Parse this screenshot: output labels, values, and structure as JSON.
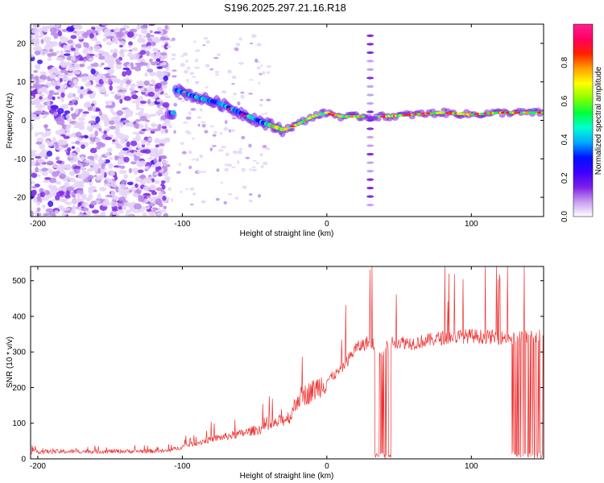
{
  "title": "S196.2025.297.21.16.R18",
  "chart_data": [
    {
      "type": "heatmap",
      "xlabel": "Height of straight line (km)",
      "ylabel": "Frequency (Hz)",
      "xlim": [
        -205,
        150
      ],
      "ylim": [
        -25,
        25
      ],
      "x_ticks": [
        -200,
        -100,
        0,
        100
      ],
      "y_ticks": [
        -20,
        -10,
        0,
        10,
        20
      ],
      "colorbar": {
        "label": "Normalized spectral amplitude",
        "range": [
          0,
          1
        ],
        "ticks": [
          "0.0",
          "0.2",
          "0.4",
          "0.6",
          "0.8"
        ],
        "colors": [
          "#ffffff",
          "#c89cf0",
          "#7d1fe8",
          "#3b00ff",
          "#0011ff",
          "#00aaff",
          "#00ffd0",
          "#00ff3c",
          "#8cff00",
          "#ffff00",
          "#ffa000",
          "#ff2000",
          "#ff0060",
          "#ff2090"
        ]
      },
      "ridge_frequency": [
        {
          "x": -105,
          "y": 8
        },
        {
          "x": -90,
          "y": 6
        },
        {
          "x": -75,
          "y": 4.5
        },
        {
          "x": -60,
          "y": 2
        },
        {
          "x": -45,
          "y": -0.5
        },
        {
          "x": -30,
          "y": -2.5
        },
        {
          "x": -20,
          "y": -1
        },
        {
          "x": -10,
          "y": 1
        },
        {
          "x": 0,
          "y": 2
        },
        {
          "x": 10,
          "y": 1
        },
        {
          "x": 25,
          "y": 1
        },
        {
          "x": 40,
          "y": 1
        },
        {
          "x": 60,
          "y": 1.5
        },
        {
          "x": 80,
          "y": 2
        },
        {
          "x": 100,
          "y": 1.5
        },
        {
          "x": 120,
          "y": 2
        },
        {
          "x": 150,
          "y": 2
        }
      ],
      "dashed_column_x": 30
    },
    {
      "type": "line",
      "xlabel": "Height of straight line (km)",
      "ylabel": "SNR (10 * v/v)",
      "xlim": [
        -205,
        150
      ],
      "ylim": [
        0,
        540
      ],
      "x_ticks": [
        -200,
        -100,
        0,
        100
      ],
      "y_ticks": [
        0,
        100,
        200,
        300,
        400,
        500
      ],
      "color": "#ee3333",
      "baseline": [
        {
          "x": -205,
          "y": 20
        },
        {
          "x": -110,
          "y": 22
        },
        {
          "x": -95,
          "y": 40
        },
        {
          "x": -80,
          "y": 55
        },
        {
          "x": -60,
          "y": 70
        },
        {
          "x": -40,
          "y": 90
        },
        {
          "x": -25,
          "y": 120
        },
        {
          "x": -20,
          "y": 170
        },
        {
          "x": -10,
          "y": 190
        },
        {
          "x": 0,
          "y": 220
        },
        {
          "x": 10,
          "y": 250
        },
        {
          "x": 20,
          "y": 310
        },
        {
          "x": 30,
          "y": 330
        },
        {
          "x": 37,
          "y": 300
        },
        {
          "x": 45,
          "y": 330
        },
        {
          "x": 60,
          "y": 325
        },
        {
          "x": 80,
          "y": 340
        },
        {
          "x": 100,
          "y": 345
        },
        {
          "x": 120,
          "y": 340
        },
        {
          "x": 150,
          "y": 345
        }
      ],
      "dropouts_x": [
        [
          33,
          45
        ],
        [
          128,
          150
        ]
      ]
    }
  ]
}
